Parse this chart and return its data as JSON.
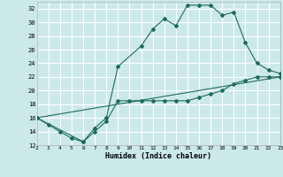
{
  "xlabel": "Humidex (Indice chaleur)",
  "bg_color": "#cce9e9",
  "grid_color": "#ffffff",
  "line_color": "#1e6b5e",
  "xlim": [
    2,
    23
  ],
  "ylim": [
    12,
    33
  ],
  "xticks": [
    2,
    3,
    4,
    5,
    6,
    7,
    8,
    9,
    10,
    11,
    12,
    13,
    14,
    15,
    16,
    17,
    18,
    19,
    20,
    21,
    22,
    23
  ],
  "yticks": [
    12,
    14,
    16,
    18,
    20,
    22,
    24,
    26,
    28,
    30,
    32
  ],
  "s1x": [
    2,
    3,
    4,
    5,
    6,
    7,
    8,
    9,
    10,
    11,
    12,
    13,
    14,
    15,
    16,
    17,
    18,
    19,
    20,
    21,
    22,
    23
  ],
  "s1y": [
    16,
    15,
    14,
    13,
    12.5,
    14,
    15.5,
    18.5,
    18.5,
    18.5,
    18.5,
    18.5,
    18.5,
    18.5,
    19,
    19.5,
    20,
    21,
    21.5,
    22,
    22,
    22
  ],
  "s2x": [
    2,
    6,
    7,
    8,
    9,
    11,
    12,
    13,
    14,
    15,
    16,
    17,
    18,
    19,
    20,
    21,
    22,
    23
  ],
  "s2y": [
    16,
    12.5,
    14.5,
    16,
    23.5,
    26.5,
    29,
    30.5,
    29.5,
    32.5,
    32.5,
    32.5,
    31,
    31.5,
    27,
    24,
    23,
    22.5
  ],
  "s3x": [
    2,
    23
  ],
  "s3y": [
    16,
    22
  ]
}
